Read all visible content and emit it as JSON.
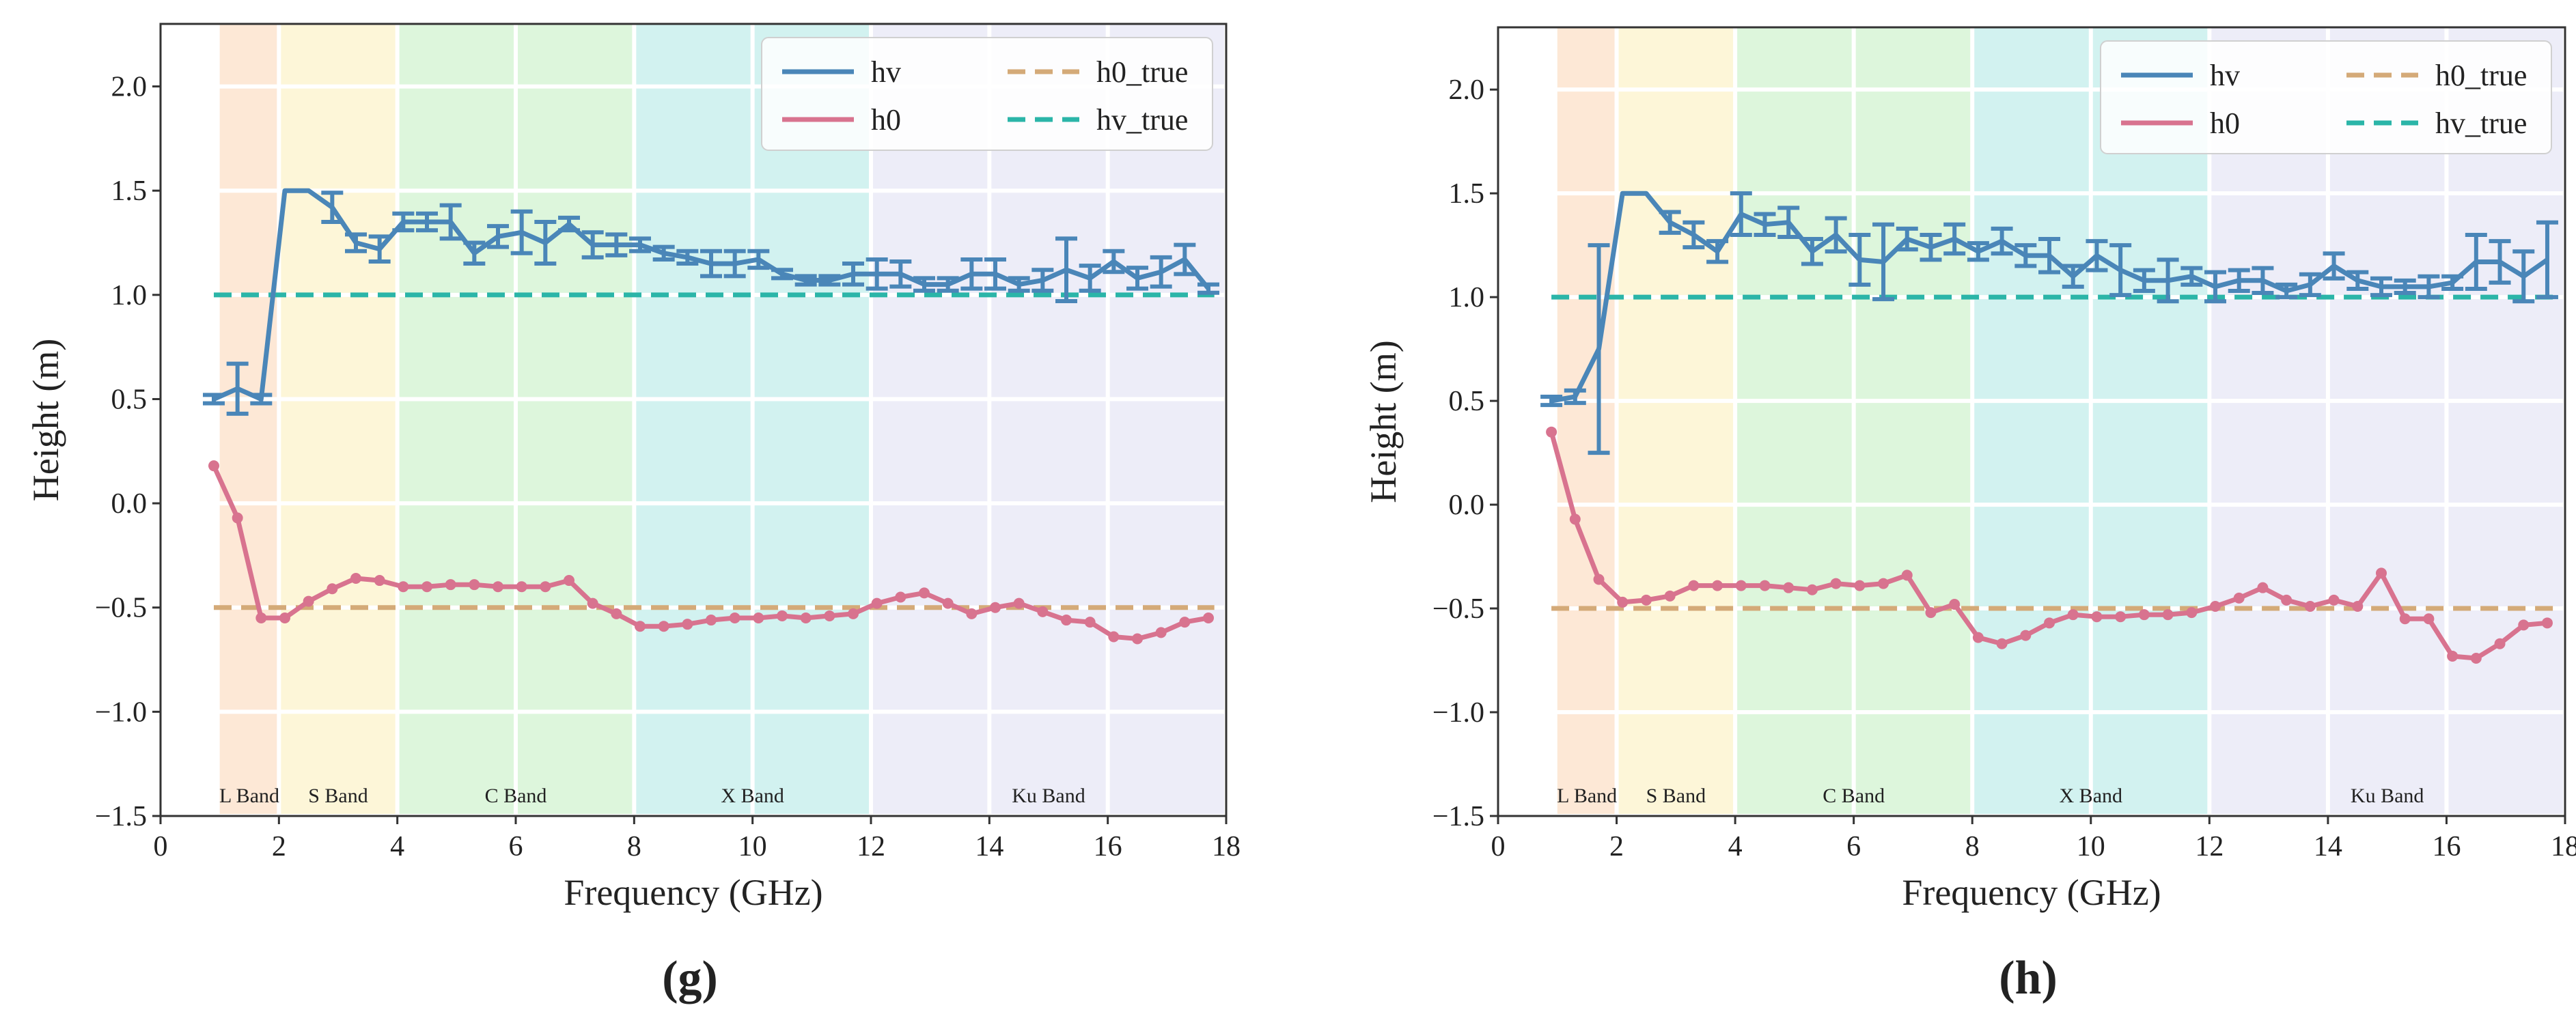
{
  "chart_data": [
    {
      "type": "line",
      "panel": "(g)",
      "xlabel": "Frequency (GHz)",
      "ylabel": "Height (m)",
      "xlim": [
        0,
        18
      ],
      "ylim": [
        -1.5,
        2.3
      ],
      "xticks": [
        0,
        2,
        4,
        6,
        8,
        10,
        12,
        14,
        16,
        18
      ],
      "yticks": [
        -1.5,
        -1.0,
        -0.5,
        0.0,
        0.5,
        1.0,
        1.5,
        2.0
      ],
      "grid": true,
      "legend_position": "top-right",
      "bands": [
        {
          "name": "L Band",
          "from": 1,
          "to": 2,
          "color": "#fde8d6"
        },
        {
          "name": "S Band",
          "from": 2,
          "to": 4,
          "color": "#fdf6d8"
        },
        {
          "name": "C Band",
          "from": 4,
          "to": 8,
          "color": "#ddf6dc"
        },
        {
          "name": "X Band",
          "from": 8,
          "to": 12,
          "color": "#d2f2f0"
        },
        {
          "name": "Ku Band",
          "from": 12,
          "to": 18,
          "color": "#ededf8"
        }
      ],
      "x": [
        0.9,
        1.3,
        1.7,
        2.1,
        2.5,
        2.9,
        3.3,
        3.7,
        4.1,
        4.5,
        4.9,
        5.3,
        5.7,
        6.1,
        6.5,
        6.9,
        7.3,
        7.7,
        8.1,
        8.5,
        8.9,
        9.3,
        9.7,
        10.1,
        10.5,
        10.9,
        11.3,
        11.7,
        12.1,
        12.5,
        12.9,
        13.3,
        13.7,
        14.1,
        14.5,
        14.9,
        15.3,
        15.7,
        16.1,
        16.5,
        16.9,
        17.3,
        17.7
      ],
      "series": [
        {
          "name": "hv",
          "color": "#4a86b8",
          "style": "solid",
          "values": [
            0.5,
            0.55,
            0.5,
            1.5,
            1.5,
            1.42,
            1.25,
            1.22,
            1.35,
            1.35,
            1.35,
            1.2,
            1.28,
            1.3,
            1.25,
            1.34,
            1.24,
            1.24,
            1.24,
            1.2,
            1.18,
            1.15,
            1.15,
            1.17,
            1.1,
            1.07,
            1.07,
            1.1,
            1.1,
            1.1,
            1.05,
            1.05,
            1.1,
            1.1,
            1.05,
            1.07,
            1.12,
            1.08,
            1.16,
            1.08,
            1.11,
            1.17,
            1.03
          ],
          "errors": [
            0.02,
            0.12,
            0.02,
            0.0,
            0.0,
            0.07,
            0.04,
            0.06,
            0.04,
            0.04,
            0.08,
            0.05,
            0.05,
            0.1,
            0.1,
            0.03,
            0.06,
            0.05,
            0.03,
            0.03,
            0.03,
            0.06,
            0.06,
            0.04,
            0.02,
            0.02,
            0.02,
            0.05,
            0.07,
            0.06,
            0.03,
            0.03,
            0.07,
            0.07,
            0.03,
            0.05,
            0.15,
            0.06,
            0.05,
            0.05,
            0.07,
            0.07,
            0.02
          ]
        },
        {
          "name": "h0",
          "color": "#d8738f",
          "style": "solid",
          "values": [
            0.18,
            -0.07,
            -0.55,
            -0.55,
            -0.47,
            -0.41,
            -0.36,
            -0.37,
            -0.4,
            -0.4,
            -0.39,
            -0.39,
            -0.4,
            -0.4,
            -0.4,
            -0.37,
            -0.48,
            -0.53,
            -0.59,
            -0.59,
            -0.58,
            -0.56,
            -0.55,
            -0.55,
            -0.54,
            -0.55,
            -0.54,
            -0.53,
            -0.48,
            -0.45,
            -0.43,
            -0.48,
            -0.53,
            -0.5,
            -0.48,
            -0.52,
            -0.56,
            -0.57,
            -0.64,
            -0.65,
            -0.62,
            -0.57,
            -0.55
          ]
        },
        {
          "name": "h0_true",
          "color": "#d4aa78",
          "style": "dashed",
          "constant": -0.5
        },
        {
          "name": "hv_true",
          "color": "#2bb5a8",
          "style": "dashed",
          "constant": 1.0
        }
      ]
    },
    {
      "type": "line",
      "panel": "(h)",
      "xlabel": "Frequency (GHz)",
      "ylabel": "Height (m)",
      "xlim": [
        0,
        18
      ],
      "ylim": [
        -1.5,
        2.3
      ],
      "xticks": [
        0,
        2,
        4,
        6,
        8,
        10,
        12,
        14,
        16,
        18
      ],
      "yticks": [
        -1.5,
        -1.0,
        -0.5,
        0.0,
        0.5,
        1.0,
        1.5,
        2.0
      ],
      "grid": true,
      "legend_position": "top-right",
      "bands": [
        {
          "name": "L Band",
          "from": 1,
          "to": 2,
          "color": "#fde8d6"
        },
        {
          "name": "S Band",
          "from": 2,
          "to": 4,
          "color": "#fdf6d8"
        },
        {
          "name": "C Band",
          "from": 4,
          "to": 8,
          "color": "#ddf6dc"
        },
        {
          "name": "X Band",
          "from": 8,
          "to": 12,
          "color": "#d2f2f0"
        },
        {
          "name": "Ku Band",
          "from": 12,
          "to": 18,
          "color": "#ededf8"
        }
      ],
      "x": [
        0.9,
        1.3,
        1.7,
        2.1,
        2.5,
        2.9,
        3.3,
        3.7,
        4.1,
        4.5,
        4.9,
        5.3,
        5.7,
        6.1,
        6.5,
        6.9,
        7.3,
        7.7,
        8.1,
        8.5,
        8.9,
        9.3,
        9.7,
        10.1,
        10.5,
        10.9,
        11.3,
        11.7,
        12.1,
        12.5,
        12.9,
        13.3,
        13.7,
        14.1,
        14.5,
        14.9,
        15.3,
        15.7,
        16.1,
        16.5,
        16.9,
        17.3,
        17.7
      ],
      "series": [
        {
          "name": "hv",
          "color": "#4a86b8",
          "style": "solid",
          "values": [
            0.5,
            0.52,
            0.75,
            1.5,
            1.5,
            1.36,
            1.3,
            1.22,
            1.4,
            1.35,
            1.36,
            1.22,
            1.3,
            1.18,
            1.17,
            1.28,
            1.24,
            1.28,
            1.22,
            1.27,
            1.2,
            1.2,
            1.1,
            1.2,
            1.13,
            1.08,
            1.08,
            1.1,
            1.05,
            1.08,
            1.08,
            1.03,
            1.06,
            1.15,
            1.08,
            1.05,
            1.05,
            1.05,
            1.07,
            1.17,
            1.17,
            1.1,
            1.18
          ],
          "errors": [
            0.02,
            0.03,
            0.5,
            0.0,
            0.0,
            0.05,
            0.06,
            0.05,
            0.1,
            0.05,
            0.07,
            0.06,
            0.08,
            0.12,
            0.18,
            0.05,
            0.06,
            0.07,
            0.04,
            0.06,
            0.05,
            0.08,
            0.05,
            0.07,
            0.12,
            0.05,
            0.1,
            0.04,
            0.07,
            0.05,
            0.06,
            0.03,
            0.05,
            0.06,
            0.04,
            0.04,
            0.03,
            0.05,
            0.03,
            0.13,
            0.1,
            0.12,
            0.18
          ]
        },
        {
          "name": "h0",
          "color": "#d8738f",
          "style": "solid",
          "values": [
            0.35,
            -0.07,
            -0.36,
            -0.47,
            -0.46,
            -0.44,
            -0.39,
            -0.39,
            -0.39,
            -0.39,
            -0.4,
            -0.41,
            -0.38,
            -0.39,
            -0.38,
            -0.34,
            -0.52,
            -0.48,
            -0.64,
            -0.67,
            -0.63,
            -0.57,
            -0.53,
            -0.54,
            -0.54,
            -0.53,
            -0.53,
            -0.52,
            -0.49,
            -0.45,
            -0.4,
            -0.46,
            -0.49,
            -0.46,
            -0.49,
            -0.33,
            -0.55,
            -0.55,
            -0.73,
            -0.74,
            -0.67,
            -0.58,
            -0.57
          ]
        },
        {
          "name": "h0_true",
          "color": "#d4aa78",
          "style": "dashed",
          "constant": -0.5
        },
        {
          "name": "hv_true",
          "color": "#2bb5a8",
          "style": "dashed",
          "constant": 1.0
        }
      ]
    }
  ]
}
